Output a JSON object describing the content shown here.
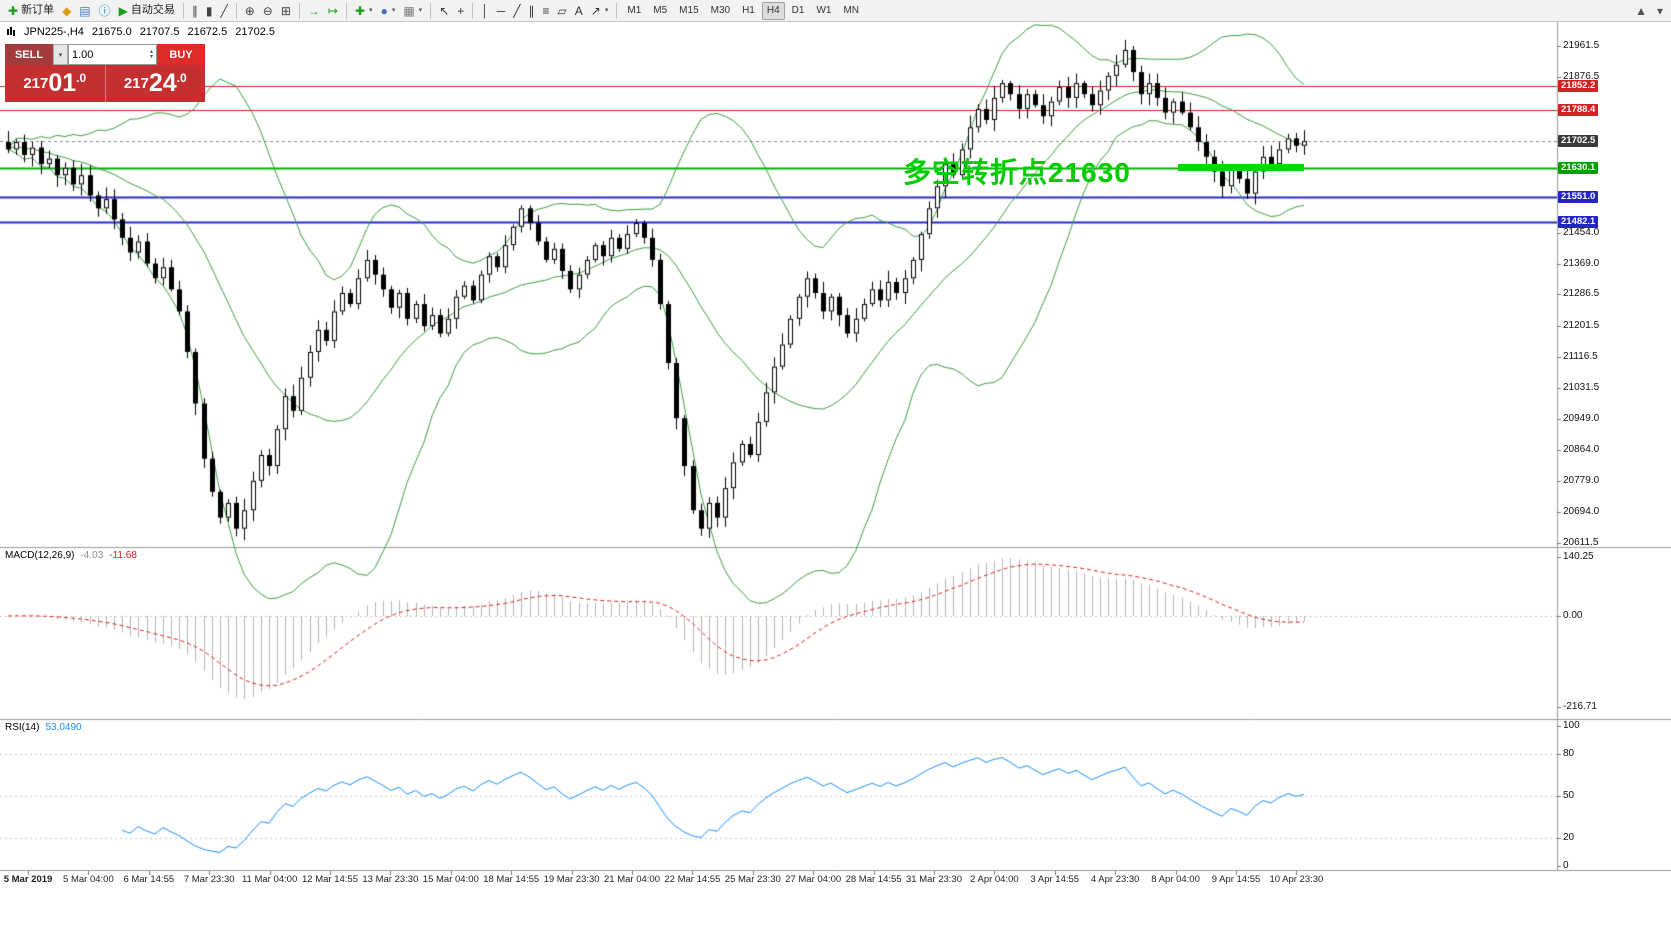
{
  "colors": {
    "accent_green": "#00cc00",
    "band_green": "#3c9e46",
    "macd_hist": "#b4b4b4",
    "macd_signal": "#dd2222",
    "rsi_line": "#1e90ff",
    "sell_red": "#a33c3c",
    "buy_red": "#e02b2b",
    "price_red": "#c62f2f"
  },
  "toolbar": {
    "items": [
      {
        "name": "new-order-button",
        "glyph": "✚",
        "color": "#18a018",
        "label": "新订单"
      },
      {
        "name": "alert-icon-button",
        "glyph": "◆",
        "color": "#e0a010"
      },
      {
        "name": "market-watch-button",
        "glyph": "▤",
        "color": "#4a7ac0"
      },
      {
        "name": "info-button",
        "glyph": "ⓘ",
        "color": "#2090c0"
      },
      {
        "name": "auto-trading-button",
        "glyph": "▶",
        "color": "#18a018",
        "label": "自动交易"
      },
      {
        "sep": true
      },
      {
        "name": "bar-chart-button",
        "glyph": "∥",
        "color": "#444444"
      },
      {
        "name": "candlestick-chart-button",
        "glyph": "▮",
        "color": "#444444"
      },
      {
        "name": "line-chart-button",
        "glyph": "╱",
        "color": "#444444"
      },
      {
        "sep": true
      },
      {
        "name": "zoom-in-button",
        "glyph": "⊕",
        "color": "#444444"
      },
      {
        "name": "zoom-out-button",
        "glyph": "⊖",
        "color": "#444444"
      },
      {
        "name": "tile-windows-button",
        "glyph": "⊞",
        "color": "#444444"
      },
      {
        "sep": true
      },
      {
        "name": "auto-scroll-button",
        "glyph": "→",
        "color": "#18a018"
      },
      {
        "name": "chart-shift-button",
        "glyph": "↦",
        "color": "#18a018"
      },
      {
        "sep": true
      },
      {
        "name": "indicators-button",
        "glyph": "✚",
        "color": "#18a018",
        "dd": true
      },
      {
        "name": "periods-button",
        "glyph": "●",
        "color": "#3a6fc0",
        "dd": true
      },
      {
        "name": "templates-button",
        "glyph": "▦",
        "color": "#7a7a7a",
        "dd": true
      },
      {
        "sep": true
      },
      {
        "name": "cursor-button",
        "glyph": "↖",
        "color": "#333333"
      },
      {
        "name": "crosshair-button",
        "glyph": "+",
        "color": "#333333"
      },
      {
        "sep": true
      },
      {
        "name": "vertical-line-button",
        "glyph": "│",
        "color": "#333333"
      },
      {
        "name": "horizontal-line-button",
        "glyph": "─",
        "color": "#333333"
      },
      {
        "name": "trendline-button",
        "glyph": "╱",
        "color": "#333333"
      },
      {
        "name": "channel-button",
        "glyph": "∥",
        "color": "#333333"
      },
      {
        "name": "fibonacci-button",
        "glyph": "≡",
        "color": "#333333"
      },
      {
        "name": "shapes-button",
        "glyph": "▱",
        "color": "#333333"
      },
      {
        "name": "text-button",
        "glyph": "A",
        "color": "#333333"
      },
      {
        "name": "arrow-tools-button",
        "glyph": "↗",
        "color": "#333333",
        "dd": true
      },
      {
        "sep": true
      }
    ],
    "timeframes": [
      "M1",
      "M5",
      "M15",
      "M30",
      "H1",
      "H4",
      "D1",
      "W1",
      "MN"
    ],
    "active_timeframe": "H4",
    "right_items": [
      {
        "name": "chart-scroll-button",
        "glyph": "▲",
        "color": "#555555"
      },
      {
        "name": "toolbar-options-button",
        "glyph": "▾",
        "color": "#555555"
      }
    ]
  },
  "symbol_info": {
    "symbol": "JPN225-,H4",
    "open": "21675.0",
    "high": "21707.5",
    "low": "21672.5",
    "close": "21702.5"
  },
  "trade_panel": {
    "sell_label": "SELL",
    "buy_label": "BUY",
    "volume": "1.00",
    "sell": {
      "prefix": "217",
      "big": "01",
      "pips": ".0"
    },
    "buy": {
      "prefix": "217",
      "big": "24",
      "pips": ".0"
    }
  },
  "annotation": {
    "text": "多空转折点21630",
    "color": "#00cc00"
  },
  "highlight_line": {
    "price": 21630,
    "color": "#00d800"
  },
  "price_axis": {
    "labels": [
      "21961.5",
      "21876.5",
      "21454.0",
      "21369.0",
      "21286.5",
      "21201.5",
      "21116.5",
      "21031.5",
      "20949.0",
      "20864.0",
      "20779.0",
      "20694.0",
      "20611.5"
    ],
    "badges": [
      {
        "text": "21852.2",
        "price": 21852.2,
        "bg": "#d42020"
      },
      {
        "text": "21788.4",
        "price": 21788.4,
        "bg": "#d42020"
      },
      {
        "text": "21702.5",
        "price": 21702.5,
        "bg": "#3a3a3a"
      },
      {
        "text": "21630.1",
        "price": 21630.1,
        "bg": "#00a000"
      },
      {
        "text": "21551.0",
        "price": 21551.0,
        "bg": "#2424c4"
      },
      {
        "text": "21482.1",
        "price": 21482.1,
        "bg": "#2424c4"
      }
    ]
  },
  "macd_panel": {
    "label": "MACD(12,26,9)",
    "value_main": "-4.03",
    "value_signal": "-11.68",
    "axis": [
      "140.25",
      "0.00",
      "-216.71"
    ]
  },
  "rsi_panel": {
    "label": "RSI(14)",
    "value": "53.0490",
    "axis": [
      "100",
      "80",
      "50",
      "20",
      "0"
    ],
    "levels": [
      80,
      50,
      20
    ]
  },
  "chart_data": {
    "type": "candlestick",
    "symbol": "JPN225",
    "timeframe": "H4",
    "ohlc_current": {
      "open": 21675.0,
      "high": 21707.5,
      "low": 21672.5,
      "close": 21702.5
    },
    "price_range": [
      20611.5,
      21961.5
    ],
    "levels": [
      {
        "price": 21852.2,
        "color": "#cc2020",
        "width": 1,
        "dash": false
      },
      {
        "price": 21788.4,
        "color": "#cc2020",
        "width": 1,
        "dash": false
      },
      {
        "price": 21702.5,
        "color": "#8a8a8a",
        "width": 1,
        "dash": true
      },
      {
        "price": 21630.1,
        "color": "#00b000",
        "width": 2,
        "dash": false
      },
      {
        "price": 21551.0,
        "color": "#2828c8",
        "width": 2,
        "dash": false
      },
      {
        "price": 21482.1,
        "color": "#2828c8",
        "width": 2,
        "dash": false
      }
    ],
    "bollinger": {
      "period": 20,
      "deviation": 2
    },
    "macd": {
      "fast": 12,
      "slow": 26,
      "signal": 9,
      "current_main": -4.03,
      "current_signal": -11.68
    },
    "rsi": {
      "period": 14,
      "current": 53.049
    },
    "closes": [
      21680,
      21700,
      21665,
      21685,
      21640,
      21655,
      21610,
      21630,
      21585,
      21610,
      21555,
      21520,
      21545,
      21490,
      21440,
      21400,
      21430,
      21370,
      21330,
      21360,
      21300,
      21240,
      21130,
      20990,
      20840,
      20750,
      20680,
      20720,
      20650,
      20700,
      20780,
      20850,
      20820,
      20920,
      21010,
      20970,
      21060,
      21130,
      21190,
      21160,
      21240,
      21290,
      21260,
      21330,
      21380,
      21340,
      21300,
      21250,
      21290,
      21220,
      21260,
      21200,
      21230,
      21180,
      21220,
      21280,
      21310,
      21270,
      21340,
      21390,
      21360,
      21420,
      21470,
      21520,
      21480,
      21430,
      21380,
      21410,
      21350,
      21300,
      21340,
      21380,
      21420,
      21390,
      21440,
      21410,
      21450,
      21480,
      21440,
      21380,
      21260,
      21100,
      20950,
      20820,
      20700,
      20650,
      20720,
      20680,
      20760,
      20830,
      20880,
      20850,
      20940,
      21020,
      21090,
      21150,
      21220,
      21280,
      21330,
      21290,
      21240,
      21280,
      21230,
      21180,
      21220,
      21260,
      21300,
      21270,
      21320,
      21290,
      21330,
      21380,
      21450,
      21520,
      21580,
      21640,
      21610,
      21680,
      21740,
      21790,
      21760,
      21820,
      21860,
      21830,
      21790,
      21830,
      21800,
      21770,
      21810,
      21850,
      21820,
      21860,
      21830,
      21800,
      21840,
      21880,
      21910,
      21950,
      21890,
      21830,
      21860,
      21820,
      21780,
      21810,
      21780,
      21740,
      21700,
      21660,
      21620,
      21580,
      21630,
      21600,
      21560,
      21620,
      21660,
      21640,
      21680,
      21710,
      21690,
      21702.5
    ],
    "date_labels": [
      "5 Mar 2019",
      "5 Mar 04:00",
      "6 Mar 14:55",
      "7 Mar 23:30",
      "11 Mar 04:00",
      "12 Mar 14:55",
      "13 Mar 23:30",
      "15 Mar 04:00",
      "18 Mar 14:55",
      "19 Mar 23:30",
      "21 Mar 04:00",
      "22 Mar 14:55",
      "25 Mar 23:30",
      "27 Mar 04:00",
      "28 Mar 14:55",
      "31 Mar 23:30",
      "2 Apr 04:00",
      "3 Apr 14:55",
      "4 Apr 23:30",
      "8 Apr 04:00",
      "9 Apr 14:55",
      "10 Apr 23:30"
    ]
  }
}
